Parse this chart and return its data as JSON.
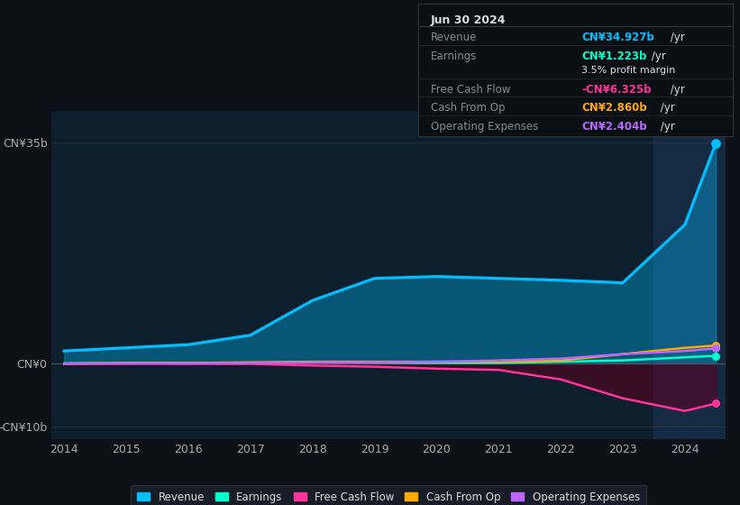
{
  "background_color": "#0d1117",
  "chart_bg_color": "#0d1f2d",
  "years": [
    2014,
    2015,
    2016,
    2017,
    2018,
    2019,
    2020,
    2021,
    2022,
    2023,
    2024,
    2024.5
  ],
  "revenue": [
    2.0,
    2.5,
    3.0,
    4.5,
    10.0,
    13.5,
    13.8,
    13.5,
    13.2,
    12.8,
    22.0,
    34.927
  ],
  "earnings": [
    0.05,
    0.08,
    0.1,
    0.1,
    0.2,
    0.15,
    0.1,
    0.1,
    0.3,
    0.5,
    1.0,
    1.223
  ],
  "free_cash_flow": [
    -0.05,
    -0.05,
    -0.05,
    -0.05,
    -0.3,
    -0.5,
    -0.8,
    -1.0,
    -2.5,
    -5.5,
    -7.5,
    -6.325
  ],
  "cash_from_op": [
    0.0,
    0.1,
    0.1,
    0.2,
    0.3,
    0.3,
    0.3,
    0.3,
    0.5,
    1.5,
    2.5,
    2.86
  ],
  "operating_expenses": [
    0.0,
    0.05,
    0.05,
    0.1,
    0.2,
    0.2,
    0.3,
    0.5,
    0.8,
    1.5,
    2.0,
    2.404
  ],
  "revenue_color": "#00bfff",
  "earnings_color": "#00ffcc",
  "free_cash_flow_color": "#ff3399",
  "cash_from_op_color": "#ffaa00",
  "operating_expenses_color": "#bb66ff",
  "ylim": [
    -12,
    40
  ],
  "ytick_vals": [
    -10,
    0,
    35
  ],
  "ytick_labels": [
    "-CN¥10b",
    "CN¥0",
    "CN¥35b"
  ],
  "xtick_years": [
    2014,
    2015,
    2016,
    2017,
    2018,
    2019,
    2020,
    2021,
    2022,
    2023,
    2024
  ],
  "info_box": {
    "date": "Jun 30 2024",
    "revenue_label": "Revenue",
    "revenue_value": "CN¥34.927b",
    "revenue_color": "#00bfff",
    "earnings_label": "Earnings",
    "earnings_value": "CN¥1.223b",
    "earnings_color": "#00ffcc",
    "margin_text": "3.5% profit margin",
    "fcf_label": "Free Cash Flow",
    "fcf_value": "-CN¥6.325b",
    "fcf_color": "#ff3399",
    "cashop_label": "Cash From Op",
    "cashop_value": "CN¥2.860b",
    "cashop_color": "#ffaa00",
    "opex_label": "Operating Expenses",
    "opex_value": "CN¥2.404b",
    "opex_color": "#bb66ff"
  },
  "legend_items": [
    {
      "label": "Revenue",
      "color": "#00bfff"
    },
    {
      "label": "Earnings",
      "color": "#00ffcc"
    },
    {
      "label": "Free Cash Flow",
      "color": "#ff3399"
    },
    {
      "label": "Cash From Op",
      "color": "#ffaa00"
    },
    {
      "label": "Operating Expenses",
      "color": "#bb66ff"
    }
  ],
  "highlight_x": 2023.5
}
